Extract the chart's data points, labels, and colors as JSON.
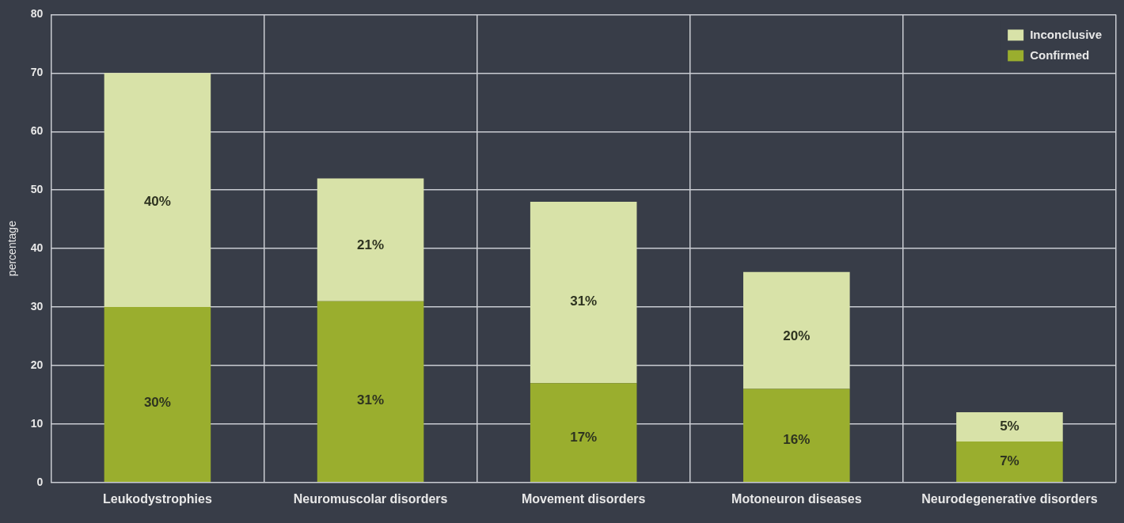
{
  "chart_data": {
    "type": "bar",
    "stacked": true,
    "ylabel": "percentage",
    "categories": [
      "Leukodystrophies",
      "Neuromuscolar disorders",
      "Movement disorders",
      "Motoneuron diseases",
      "Neurodegenerative disorders"
    ],
    "series": [
      {
        "name": "Confirmed",
        "color": "#9aae2e",
        "values": [
          30,
          31,
          17,
          16,
          7
        ],
        "value_labels": [
          "30%",
          "31%",
          "17%",
          "16%",
          "7%"
        ]
      },
      {
        "name": "Inconclusive",
        "color": "#d8e2a8",
        "values": [
          40,
          21,
          31,
          20,
          5
        ],
        "value_labels": [
          "40%",
          "21%",
          "31%",
          "20%",
          "5%"
        ]
      }
    ],
    "ylim": [
      0,
      80
    ],
    "yticks": [
      0,
      10,
      20,
      30,
      40,
      50,
      60,
      70,
      80
    ],
    "grid": true,
    "legend": "top right"
  }
}
